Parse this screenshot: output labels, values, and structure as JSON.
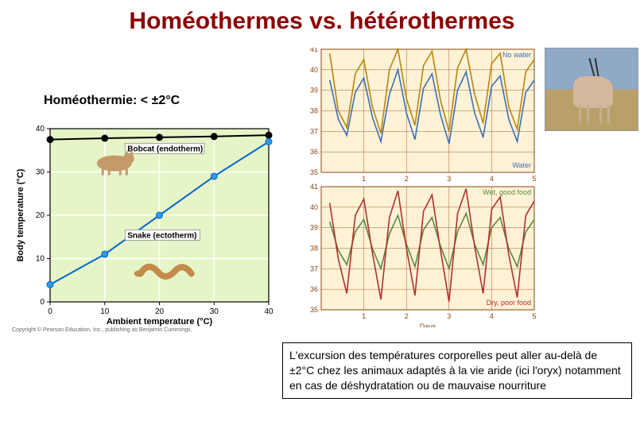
{
  "title": "Homéothermes vs. hétérothermes",
  "subtitle": "Homéothermie: < ±2°C",
  "caption": "L'excursion des températures corporelles peut aller au-delà de ±2°C chez les animaux adaptés à la vie aride (ici l'oryx) notamment en cas de déshydratation ou de mauvaise nourriture",
  "copyright": "Copyright © Pearson Education, Inc., publishing as Benjamin Cummings.",
  "left_chart": {
    "type": "line",
    "xlabel": "Ambient temperature (°C)",
    "ylabel": "Body temperature (°C)",
    "xlim": [
      0,
      40
    ],
    "ylim": [
      0,
      40
    ],
    "xtick_step": 10,
    "ytick_step": 10,
    "background_color": "#e6f5c8",
    "grid_color": "#ffffff",
    "series": [
      {
        "name": "Bobcat (endotherm)",
        "label": "Bobcat (endotherm)",
        "color": "#000000",
        "marker_fill": "#000000",
        "x": [
          0,
          10,
          20,
          30,
          40
        ],
        "y": [
          37.5,
          37.8,
          38,
          38.2,
          38.5
        ],
        "label_pos": {
          "x": 14,
          "y": 35
        }
      },
      {
        "name": "Snake (ectotherm)",
        "label": "Snake (ectotherm)",
        "color": "#0066cc",
        "marker_fill": "#3399dd",
        "x": [
          0,
          10,
          20,
          30,
          40
        ],
        "y": [
          4,
          11,
          20,
          29,
          37
        ],
        "label_pos": {
          "x": 14,
          "y": 15
        }
      }
    ]
  },
  "right_top_chart": {
    "type": "line",
    "ylim": [
      35,
      41
    ],
    "ytick_step": 1,
    "xlim": [
      0,
      5
    ],
    "xticks": [
      1,
      2,
      3,
      4,
      5
    ],
    "background_color": "#fff2d6",
    "grid_color": "#a06030",
    "series": [
      {
        "name": "No water",
        "label": "No water",
        "color": "#b8860b",
        "label_color": "#3b6fb5",
        "x": [
          0.2,
          0.4,
          0.6,
          0.8,
          1.0,
          1.2,
          1.4,
          1.6,
          1.8,
          2.0,
          2.2,
          2.4,
          2.6,
          2.8,
          3.0,
          3.2,
          3.4,
          3.6,
          3.8,
          4.0,
          4.2,
          4.4,
          4.6,
          4.8,
          5.0
        ],
        "y": [
          40.8,
          38.0,
          37.2,
          39.8,
          40.5,
          38.2,
          36.9,
          40.0,
          41.0,
          38.6,
          37.3,
          40.2,
          40.9,
          38.5,
          37.0,
          40.1,
          41.0,
          38.8,
          37.4,
          40.3,
          40.8,
          38.2,
          37.1,
          39.9,
          40.5
        ]
      },
      {
        "name": "Water",
        "label": "Water",
        "color": "#3b6fb5",
        "label_color": "#3b6fb5",
        "x": [
          0.2,
          0.4,
          0.6,
          0.8,
          1.0,
          1.2,
          1.4,
          1.6,
          1.8,
          2.0,
          2.2,
          2.4,
          2.6,
          2.8,
          3.0,
          3.2,
          3.4,
          3.6,
          3.8,
          4.0,
          4.2,
          4.4,
          4.6,
          4.8,
          5.0
        ],
        "y": [
          39.5,
          37.6,
          36.8,
          38.9,
          39.6,
          37.7,
          36.5,
          38.8,
          40.0,
          37.9,
          36.6,
          39.1,
          39.8,
          37.8,
          36.4,
          39.0,
          39.9,
          37.9,
          36.7,
          39.2,
          39.7,
          37.6,
          36.5,
          38.9,
          39.5
        ]
      }
    ]
  },
  "right_bottom_chart": {
    "type": "line",
    "ylim": [
      35,
      41
    ],
    "ytick_step": 1,
    "xlim": [
      0,
      5
    ],
    "xticks": [
      1,
      2,
      3,
      4,
      5
    ],
    "xlabel": "Days",
    "background_color": "#fff2d6",
    "grid_color": "#a06030",
    "series": [
      {
        "name": "Wet, good food",
        "label": "Wet, good food",
        "color": "#5a8a3a",
        "label_color": "#5a8a3a",
        "x": [
          0.2,
          0.4,
          0.6,
          0.8,
          1.0,
          1.2,
          1.4,
          1.6,
          1.8,
          2.0,
          2.2,
          2.4,
          2.6,
          2.8,
          3.0,
          3.2,
          3.4,
          3.6,
          3.8,
          4.0,
          4.2,
          4.4,
          4.6,
          4.8,
          5.0
        ],
        "y": [
          39.3,
          37.9,
          37.2,
          38.8,
          39.4,
          38.0,
          37.0,
          38.7,
          39.6,
          38.2,
          37.1,
          38.9,
          39.5,
          38.1,
          37.0,
          38.8,
          39.7,
          38.2,
          37.2,
          39.0,
          39.5,
          38.0,
          37.1,
          38.8,
          39.4
        ]
      },
      {
        "name": "Dry, poor food",
        "label": "Dry, poor food",
        "color": "#b03030",
        "label_color": "#b03030",
        "x": [
          0.2,
          0.4,
          0.6,
          0.8,
          1.0,
          1.2,
          1.4,
          1.6,
          1.8,
          2.0,
          2.2,
          2.4,
          2.6,
          2.8,
          3.0,
          3.2,
          3.4,
          3.6,
          3.8,
          4.0,
          4.2,
          4.4,
          4.6,
          4.8,
          5.0
        ],
        "y": [
          40.2,
          37.5,
          35.8,
          39.6,
          40.4,
          37.8,
          35.5,
          39.5,
          40.8,
          38.0,
          35.7,
          39.8,
          40.6,
          37.9,
          35.4,
          39.7,
          40.9,
          38.1,
          35.8,
          39.9,
          40.5,
          37.7,
          35.6,
          39.6,
          40.3
        ]
      }
    ]
  }
}
